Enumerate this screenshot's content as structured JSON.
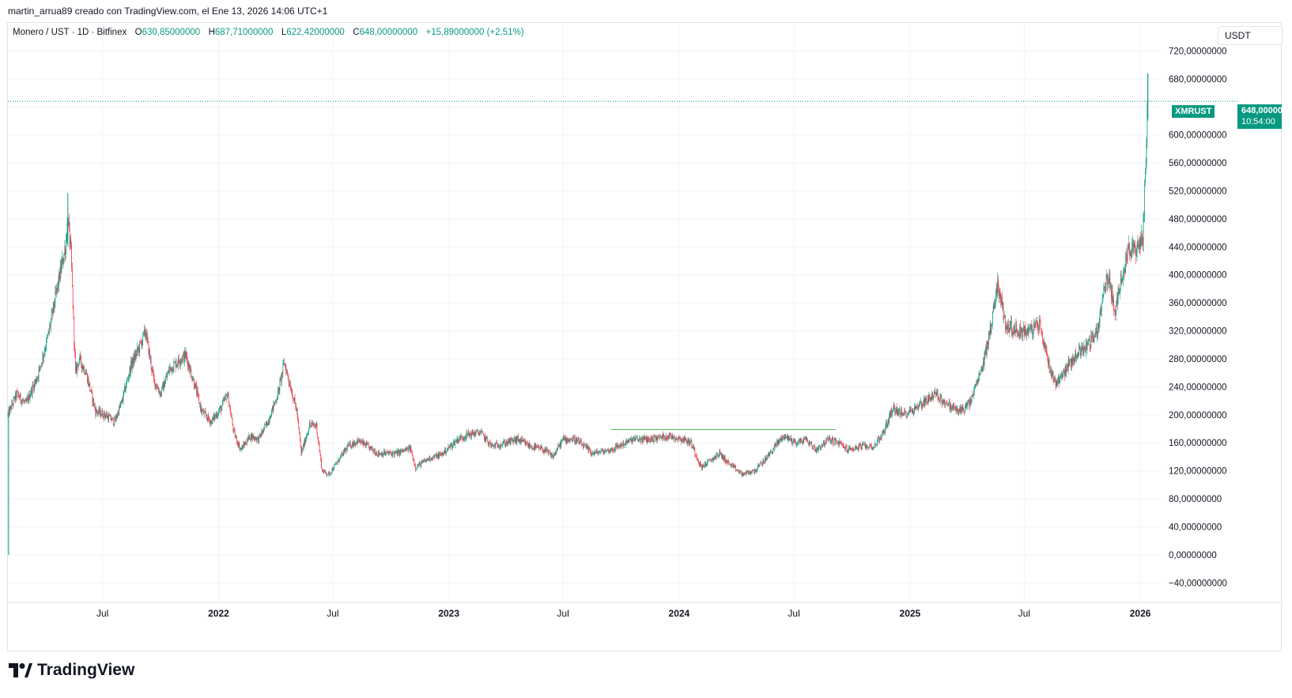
{
  "header": {
    "attribution": "martin_arrua89 creado con TradingView.com, el Ene 13, 2026 14:06 UTC+1"
  },
  "legend": {
    "symbol": "Monero / UST · 1D · Bitfinex",
    "open_label": "O",
    "open": "630,85000000",
    "high_label": "H",
    "high": "687,71000000",
    "low_label": "L",
    "low": "622,42000000",
    "close_label": "C",
    "close": "648,00000000",
    "change": "+15,89000000 (+2,51%)"
  },
  "currency": "USDT",
  "price_tag": {
    "symbol": "XMRUST",
    "price": "648,00000000",
    "countdown": "10:54:00"
  },
  "logo": {
    "text": "TradingView"
  },
  "colors": {
    "up": "#089981",
    "down": "#f23645",
    "grid": "#f0f3fa",
    "text": "#131722",
    "hline": "#4caf50"
  },
  "chart_data": {
    "type": "candlestick",
    "symbol": "XMRUST",
    "exchange": "Bitfinex",
    "interval": "1D",
    "ylim": [
      -60,
      760
    ],
    "y_ticks": [
      -40,
      0,
      40,
      80,
      120,
      160,
      200,
      240,
      280,
      320,
      360,
      400,
      440,
      480,
      520,
      560,
      600,
      640,
      680,
      720
    ],
    "y_tick_labels": [
      "−40,00000000",
      "0,00000000",
      "40,00000000",
      "80,00000000",
      "120,00000000",
      "160,00000000",
      "200,00000000",
      "240,00000000",
      "280,00000000",
      "320,00000000",
      "360,00000000",
      "400,00000000",
      "440,00000000",
      "480,00000000",
      "520,00000000",
      "560,00000000",
      "600,00000000",
      "680,00000000",
      "720,00000000"
    ],
    "x_range": [
      "2021-02-01",
      "2026-02-05"
    ],
    "x_ticks": [
      {
        "date": "2021-07-01",
        "label": "Jul",
        "bold": false
      },
      {
        "date": "2022-01-01",
        "label": "2022",
        "bold": true
      },
      {
        "date": "2022-07-01",
        "label": "Jul",
        "bold": false
      },
      {
        "date": "2023-01-01",
        "label": "2023",
        "bold": true
      },
      {
        "date": "2023-07-01",
        "label": "Jul",
        "bold": false
      },
      {
        "date": "2024-01-01",
        "label": "2024",
        "bold": true
      },
      {
        "date": "2024-07-01",
        "label": "Jul",
        "bold": false
      },
      {
        "date": "2025-01-01",
        "label": "2025",
        "bold": true
      },
      {
        "date": "2025-07-01",
        "label": "Jul",
        "bold": false
      },
      {
        "date": "2026-01-01",
        "label": "2026",
        "bold": true
      }
    ],
    "last_price": 648,
    "horizontal_line": {
      "y": 179,
      "from": "2023-09-15",
      "to": "2024-09-05"
    },
    "price_path": [
      [
        "2021-02-01",
        200
      ],
      [
        "2021-02-15",
        230
      ],
      [
        "2021-03-01",
        215
      ],
      [
        "2021-03-20",
        255
      ],
      [
        "2021-04-05",
        310
      ],
      [
        "2021-04-20",
        380
      ],
      [
        "2021-05-03",
        440
      ],
      [
        "2021-05-07",
        480
      ],
      [
        "2021-05-12",
        430
      ],
      [
        "2021-05-19",
        260
      ],
      [
        "2021-05-25",
        280
      ],
      [
        "2021-06-05",
        260
      ],
      [
        "2021-06-20",
        205
      ],
      [
        "2021-07-05",
        200
      ],
      [
        "2021-07-20",
        190
      ],
      [
        "2021-08-01",
        220
      ],
      [
        "2021-08-15",
        270
      ],
      [
        "2021-08-30",
        300
      ],
      [
        "2021-09-07",
        320
      ],
      [
        "2021-09-20",
        250
      ],
      [
        "2021-10-01",
        230
      ],
      [
        "2021-10-15",
        265
      ],
      [
        "2021-11-01",
        280
      ],
      [
        "2021-11-10",
        285
      ],
      [
        "2021-11-25",
        240
      ],
      [
        "2021-12-05",
        205
      ],
      [
        "2021-12-20",
        190
      ],
      [
        "2022-01-05",
        210
      ],
      [
        "2022-01-15",
        230
      ],
      [
        "2022-01-25",
        175
      ],
      [
        "2022-02-05",
        150
      ],
      [
        "2022-02-20",
        170
      ],
      [
        "2022-03-05",
        165
      ],
      [
        "2022-03-20",
        190
      ],
      [
        "2022-04-05",
        230
      ],
      [
        "2022-04-15",
        275
      ],
      [
        "2022-04-25",
        240
      ],
      [
        "2022-05-05",
        205
      ],
      [
        "2022-05-12",
        145
      ],
      [
        "2022-05-25",
        185
      ],
      [
        "2022-06-05",
        185
      ],
      [
        "2022-06-14",
        120
      ],
      [
        "2022-06-25",
        115
      ],
      [
        "2022-07-10",
        135
      ],
      [
        "2022-07-25",
        155
      ],
      [
        "2022-08-10",
        163
      ],
      [
        "2022-08-25",
        155
      ],
      [
        "2022-09-10",
        145
      ],
      [
        "2022-10-10",
        145
      ],
      [
        "2022-11-01",
        152
      ],
      [
        "2022-11-09",
        125
      ],
      [
        "2022-12-01",
        138
      ],
      [
        "2022-12-20",
        143
      ],
      [
        "2023-01-15",
        165
      ],
      [
        "2023-02-01",
        172
      ],
      [
        "2023-02-20",
        175
      ],
      [
        "2023-03-10",
        155
      ],
      [
        "2023-04-01",
        160
      ],
      [
        "2023-04-20",
        165
      ],
      [
        "2023-05-10",
        155
      ],
      [
        "2023-06-01",
        150
      ],
      [
        "2023-06-15",
        140
      ],
      [
        "2023-07-01",
        165
      ],
      [
        "2023-07-20",
        165
      ],
      [
        "2023-08-17",
        145
      ],
      [
        "2023-09-15",
        150
      ],
      [
        "2023-10-20",
        165
      ],
      [
        "2023-11-15",
        165
      ],
      [
        "2023-12-15",
        170
      ],
      [
        "2024-01-08",
        165
      ],
      [
        "2024-01-20",
        160
      ],
      [
        "2024-02-05",
        125
      ],
      [
        "2024-02-20",
        135
      ],
      [
        "2024-03-05",
        145
      ],
      [
        "2024-03-20",
        130
      ],
      [
        "2024-04-10",
        115
      ],
      [
        "2024-04-30",
        120
      ],
      [
        "2024-05-20",
        140
      ],
      [
        "2024-06-05",
        160
      ],
      [
        "2024-06-15",
        170
      ],
      [
        "2024-07-05",
        160
      ],
      [
        "2024-07-20",
        165
      ],
      [
        "2024-08-05",
        150
      ],
      [
        "2024-08-25",
        165
      ],
      [
        "2024-09-10",
        160
      ],
      [
        "2024-09-25",
        150
      ],
      [
        "2024-10-15",
        155
      ],
      [
        "2024-11-05",
        155
      ],
      [
        "2024-11-20",
        175
      ],
      [
        "2024-12-05",
        210
      ],
      [
        "2024-12-20",
        200
      ],
      [
        "2025-01-10",
        210
      ],
      [
        "2025-01-25",
        220
      ],
      [
        "2025-02-10",
        230
      ],
      [
        "2025-03-01",
        215
      ],
      [
        "2025-03-20",
        205
      ],
      [
        "2025-04-05",
        215
      ],
      [
        "2025-04-25",
        265
      ],
      [
        "2025-05-10",
        330
      ],
      [
        "2025-05-20",
        390
      ],
      [
        "2025-06-01",
        330
      ],
      [
        "2025-06-20",
        320
      ],
      [
        "2025-07-10",
        320
      ],
      [
        "2025-07-25",
        330
      ],
      [
        "2025-08-10",
        270
      ],
      [
        "2025-08-20",
        245
      ],
      [
        "2025-09-05",
        265
      ],
      [
        "2025-09-25",
        290
      ],
      [
        "2025-10-10",
        300
      ],
      [
        "2025-10-25",
        320
      ],
      [
        "2025-11-05",
        380
      ],
      [
        "2025-11-12",
        400
      ],
      [
        "2025-11-22",
        340
      ],
      [
        "2025-12-01",
        395
      ],
      [
        "2025-12-15",
        440
      ],
      [
        "2025-12-25",
        430
      ],
      [
        "2026-01-05",
        455
      ],
      [
        "2026-01-09",
        540
      ],
      [
        "2026-01-11",
        600
      ],
      [
        "2026-01-13",
        648
      ]
    ]
  }
}
